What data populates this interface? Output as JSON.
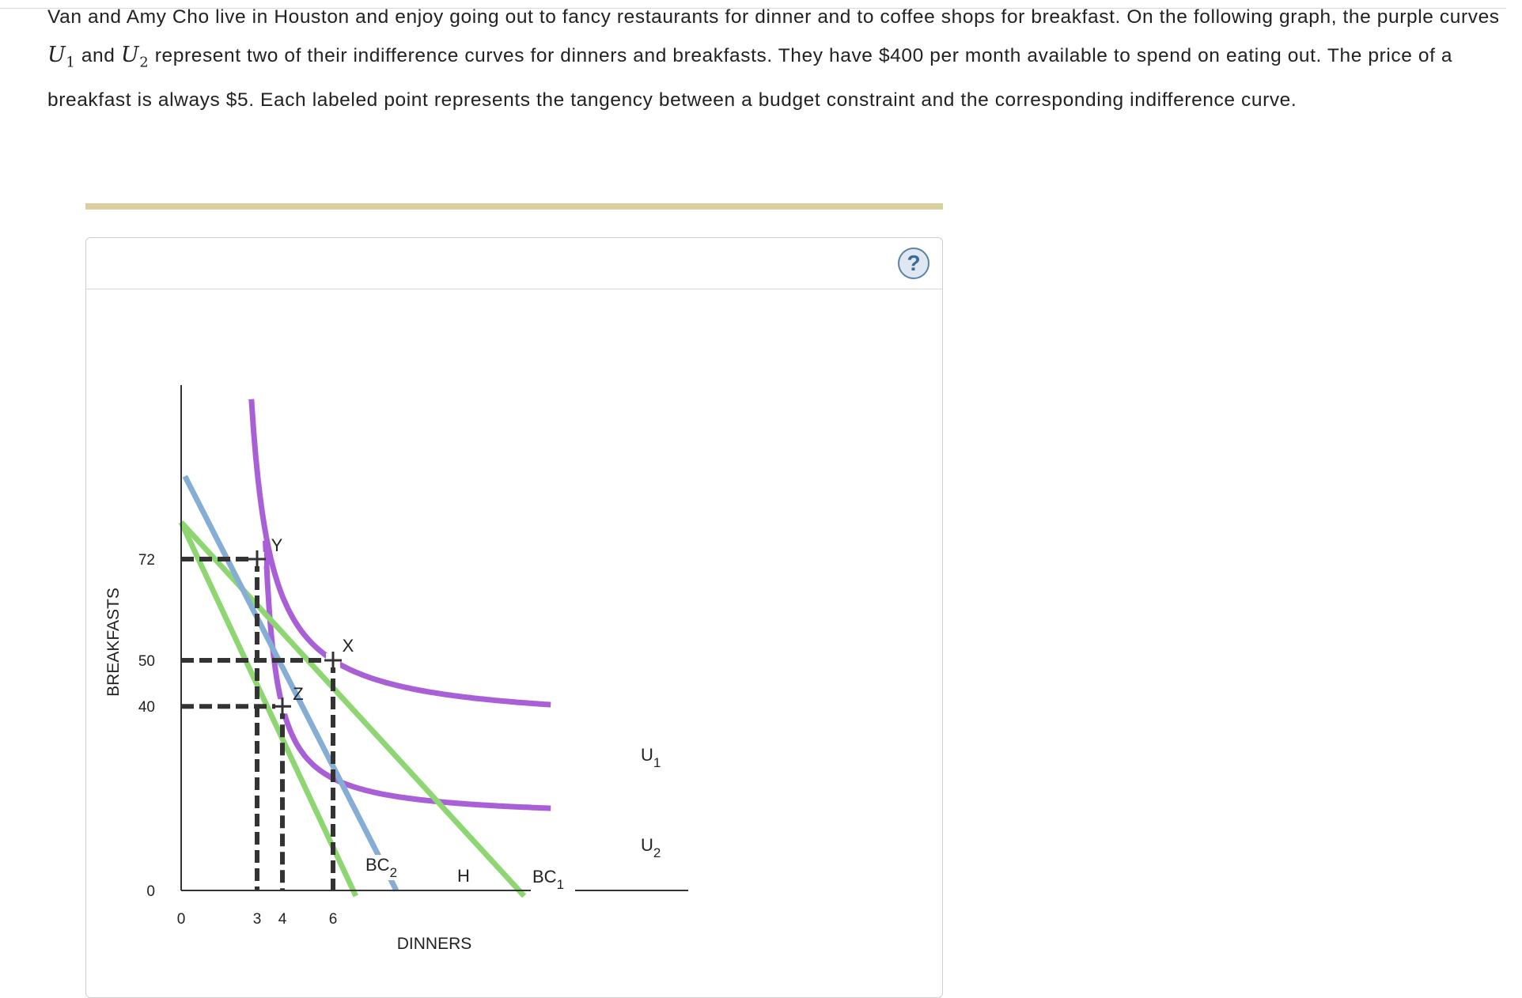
{
  "intro": {
    "t1": "Van and Amy Cho live in Houston and enjoy going out to fancy restaurants for dinner and to coffee shops for breakfast. On the following graph, the purple curves ",
    "u_sym": "U",
    "u1_sub": "1",
    "t2": " and ",
    "u2_sub": "2",
    "t3": " represent two of their indifference curves for dinners and breakfasts. They have $400 per month available to spend on eating out. The price of a breakfast is always $5. Each labeled point represents the tangency between a budget constraint and the corresponding indifference curve."
  },
  "help": {
    "label": "?"
  },
  "colors": {
    "indifference": "#a95fd6",
    "budget": "#8ed672",
    "blue_line": "#86aed5",
    "guide": "#333333",
    "axis": "#333333",
    "header_bar": "#d9cf9f"
  },
  "chart_data": {
    "type": "line",
    "xlabel": "DINNERS",
    "ylabel": "BREAKFASTS",
    "x_ticks": [
      "0",
      "3",
      "4",
      "6"
    ],
    "y_ticks": [
      "0",
      "40",
      "50",
      "72"
    ],
    "points": [
      {
        "label": "Y",
        "x": 3,
        "y": 72
      },
      {
        "label": "X",
        "x": 6,
        "y": 50
      },
      {
        "label": "Z",
        "x": 4,
        "y": 40
      }
    ],
    "indifference_curves": [
      {
        "name": "U",
        "sub": "1",
        "passes_through": [
          "Y",
          "X"
        ]
      },
      {
        "name": "U",
        "sub": "2",
        "passes_through": [
          "Z"
        ]
      }
    ],
    "budget_lines": [
      {
        "name": "BC",
        "sub": "1",
        "y_intercept": 80
      },
      {
        "name": "BC",
        "sub": "2",
        "y_intercept": 80
      }
    ],
    "blue_line": {
      "label": "H"
    },
    "grid": false
  }
}
